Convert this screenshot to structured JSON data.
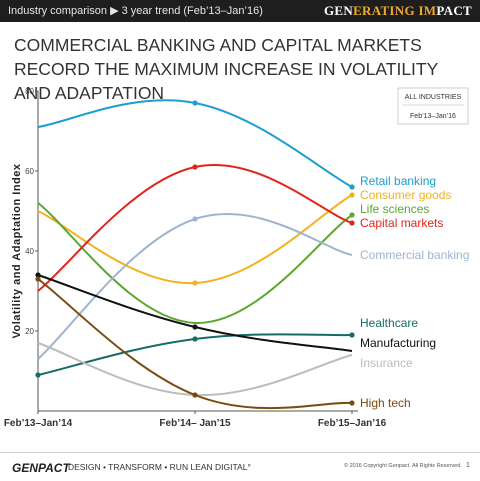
{
  "header": {
    "breadcrumb": "Industry comparison ▶ 3 year trend (Feb’13–Jan’16)",
    "brand": {
      "part1": "GEN",
      "part2": "ERATING IM",
      "part3": "PACT"
    }
  },
  "slide_title": "COMMERCIAL BANKING AND CAPITAL MARKETS RECORD THE MAXIMUM INCREASE IN VOLATILITY AND ADAPTATION",
  "footer": {
    "logo": "GENPACT",
    "tagline": "DESIGN • TRANSFORM • RUN LEAN DIGITAL°",
    "copyright": "© 2016 Copyright Genpact. All Rights Reserved.",
    "page": "1"
  },
  "chart_data": {
    "type": "line",
    "title": "",
    "xlabel": "",
    "ylabel": "Volatility and Adaptation Index",
    "categories": [
      "Feb’13–Jan’14",
      "Feb’14– Jan’15",
      "Feb’15–Jan’16"
    ],
    "ylim": [
      0,
      80
    ],
    "yticks": [
      20,
      40,
      60,
      80
    ],
    "legend_box": {
      "title": "ALL INDUSTRIES",
      "subtitle": "Feb’13–Jan’16"
    },
    "series": [
      {
        "name": "Retail banking",
        "color": "#1a9fd0",
        "values": [
          71,
          77,
          56
        ],
        "markers": [
          false,
          true,
          true
        ],
        "label_y": 57.5
      },
      {
        "name": "Consumer goods",
        "color": "#f2b21c",
        "values": [
          50,
          32,
          54
        ],
        "markers": [
          false,
          true,
          true
        ],
        "label_y": 54
      },
      {
        "name": "Life sciences",
        "color": "#5aa830",
        "values": [
          52,
          22,
          49
        ],
        "markers": [
          false,
          false,
          true
        ],
        "label_y": 50.5
      },
      {
        "name": "Capital markets",
        "color": "#e2241c",
        "values": [
          30,
          61,
          47
        ],
        "markers": [
          false,
          true,
          true
        ],
        "label_y": 47
      },
      {
        "name": "Commercial banking",
        "color": "#9fb4cf",
        "values": [
          13,
          48,
          39
        ],
        "markers": [
          false,
          true,
          false
        ],
        "label_y": 39
      },
      {
        "name": "Healthcare",
        "color": "#176b6b",
        "values": [
          9,
          18,
          19
        ],
        "markers": [
          true,
          true,
          true
        ],
        "label_y": 22
      },
      {
        "name": "Manufacturing",
        "color": "#111111",
        "values": [
          34,
          21,
          15
        ],
        "markers": [
          true,
          true,
          false
        ],
        "label_y": 17
      },
      {
        "name": "Insurance",
        "color": "#bcbcbc",
        "values": [
          17,
          4,
          14
        ],
        "markers": [
          false,
          false,
          false
        ],
        "label_y": 12
      },
      {
        "name": "High tech",
        "color": "#7a4a0e",
        "values": [
          33,
          4,
          2
        ],
        "markers": [
          true,
          true,
          true
        ],
        "label_y": 2
      }
    ]
  }
}
